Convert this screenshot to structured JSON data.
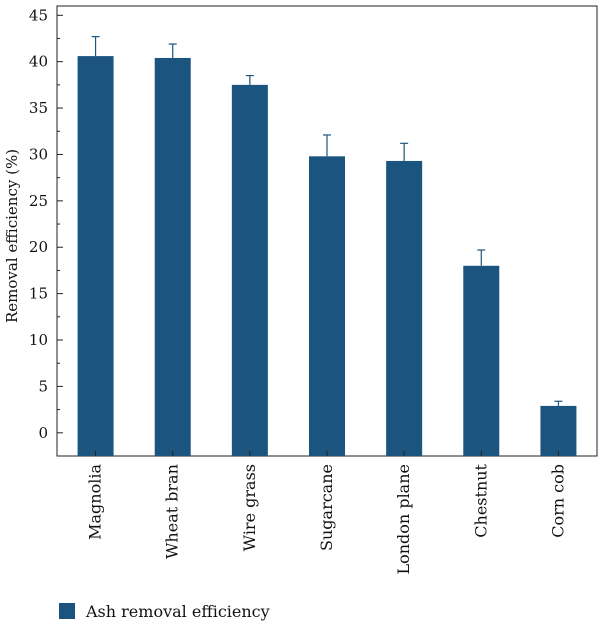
{
  "chart_data": {
    "type": "bar",
    "categories": [
      "Magnolia",
      "Wheat bran",
      "Wire grass",
      "Sugarcane",
      "London plane",
      "Chestnut",
      "Corn cob"
    ],
    "series": [
      {
        "name": "Ash removal efficiency",
        "values": [
          40.6,
          40.4,
          37.5,
          29.8,
          29.3,
          18.0,
          2.9
        ],
        "errors": [
          2.1,
          1.5,
          1.0,
          2.3,
          1.9,
          1.7,
          0.5
        ],
        "color": "#1b557f"
      }
    ],
    "ylabel": "Removal efficiency (%)",
    "xlabel": "",
    "ylim": [
      -2.5,
      46
    ],
    "yticks": [
      0,
      5,
      10,
      15,
      20,
      25,
      30,
      35,
      40,
      45
    ],
    "legend_position": "bottom-left",
    "grid": false
  }
}
